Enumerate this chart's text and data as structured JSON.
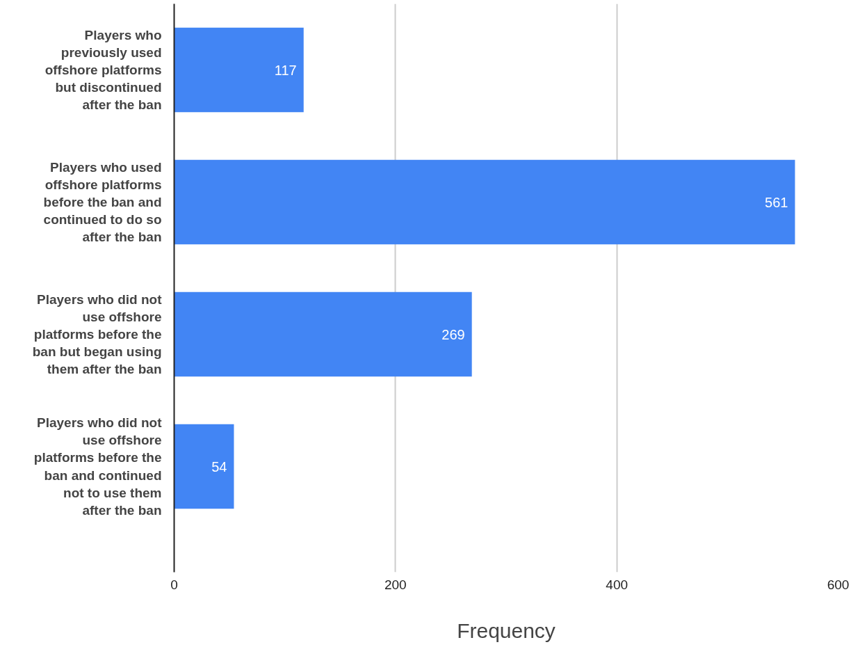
{
  "chart_data": {
    "type": "bar",
    "orientation": "horizontal",
    "xlabel": "Frequency",
    "categories": [
      "Players who previously used offshore platforms but discontinued after the ban",
      "Players who used offshore platforms before the ban and continued to do so after the ban",
      "Players who did not use offshore platforms before the ban but began using them after the ban",
      "Players who did not use offshore platforms before the ban and continued not to use them after the ban"
    ],
    "values": [
      117,
      561,
      269,
      54
    ],
    "color": "#4285f4",
    "xlim": [
      0,
      600
    ],
    "xticks": [
      0,
      200,
      400,
      600
    ],
    "grid": "x",
    "data_labels": true
  }
}
